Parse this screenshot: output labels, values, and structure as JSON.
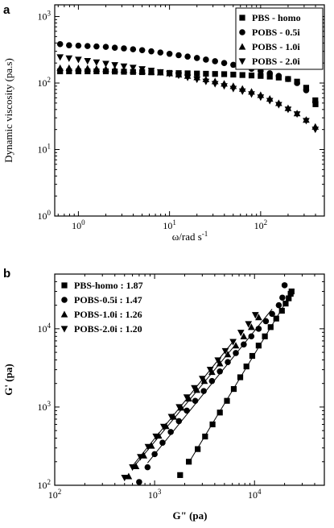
{
  "chart_data": [
    {
      "panel": "a",
      "type": "scatter",
      "x_scale": "log",
      "y_scale": "log",
      "xlim": [
        0.55,
        500
      ],
      "ylim": [
        1,
        1500
      ],
      "xlabel": "ω/rad s-1",
      "ylabel": "Dynamic viscosity (pa.s)",
      "xticks": [
        "10^0",
        "10^1",
        "10^2"
      ],
      "yticks": [
        "10^0",
        "10^1",
        "10^2",
        "10^3"
      ],
      "legend_position": "top-right",
      "series": [
        {
          "name": "PBS - homo",
          "marker": "square",
          "x": [
            0.63,
            0.79,
            1.0,
            1.26,
            1.58,
            2.0,
            2.51,
            3.16,
            3.98,
            5.01,
            6.31,
            7.94,
            10,
            12.6,
            15.8,
            20,
            25.1,
            31.6,
            39.8,
            50.1,
            63.1,
            79.4,
            100,
            126,
            158,
            200,
            251,
            316,
            398,
            400
          ],
          "y": [
            150,
            150,
            150,
            150,
            150,
            150,
            149,
            148,
            147,
            146,
            145,
            144,
            142,
            141,
            140,
            139,
            138,
            137,
            136,
            134,
            132,
            130,
            128,
            125,
            121,
            115,
            105,
            85,
            55,
            48
          ]
        },
        {
          "name": "POBS - 0.5i",
          "marker": "circle",
          "x": [
            0.63,
            0.79,
            1.0,
            1.26,
            1.58,
            2.0,
            2.51,
            3.16,
            3.98,
            5.01,
            6.31,
            7.94,
            10,
            12.6,
            15.8,
            20,
            25.1,
            31.6,
            39.8,
            50.1,
            63.1,
            79.4,
            100,
            126,
            158,
            200,
            251,
            316,
            398
          ],
          "y": [
            385,
            370,
            365,
            360,
            355,
            350,
            340,
            332,
            322,
            312,
            300,
            288,
            275,
            262,
            250,
            238,
            225,
            213,
            200,
            188,
            176,
            164,
            152,
            140,
            128,
            115,
            100,
            78,
            52
          ]
        },
        {
          "name": "POBS - 1.0i",
          "marker": "triangle-up",
          "x": [
            0.63,
            0.79,
            1.0,
            1.26,
            1.58,
            2.0,
            2.51,
            3.16,
            3.98,
            5.01,
            6.31,
            7.94,
            10,
            12.6,
            15.8,
            20,
            25.1,
            31.6,
            39.8,
            50.1,
            63.1,
            79.4,
            100,
            126,
            158,
            200,
            251,
            316,
            398
          ],
          "y": [
            168,
            168,
            167,
            166,
            164,
            162,
            160,
            158,
            155,
            152,
            148,
            144,
            140,
            134,
            128,
            122,
            114,
            106,
            98,
            90,
            82,
            74,
            66,
            58,
            50,
            42,
            35,
            28,
            22
          ]
        },
        {
          "name": "POBS - 2.0i",
          "marker": "triangle-down",
          "x": [
            0.63,
            0.79,
            1.0,
            1.26,
            1.58,
            2.0,
            2.51,
            3.16,
            3.98,
            5.01,
            6.31,
            7.94,
            10,
            12.6,
            15.8,
            20,
            25.1,
            31.6,
            39.8,
            50.1,
            63.1,
            79.4,
            100,
            126,
            158,
            200,
            251,
            316,
            398
          ],
          "y": [
            245,
            235,
            225,
            215,
            205,
            195,
            186,
            178,
            170,
            162,
            154,
            146,
            138,
            130,
            121,
            113,
            105,
            97,
            90,
            82,
            75,
            68,
            61,
            54,
            47,
            40,
            34,
            27,
            20
          ]
        }
      ]
    },
    {
      "panel": "b",
      "type": "scatter",
      "x_scale": "log",
      "y_scale": "log",
      "xlim": [
        100,
        50000
      ],
      "ylim": [
        100,
        50000
      ],
      "xlabel": "G\" (pa)",
      "ylabel": "G' (pa)",
      "xticks": [
        "10^2",
        "10^3",
        "10^4"
      ],
      "yticks": [
        "10^2",
        "10^3",
        "10^4"
      ],
      "legend_position": "top-left",
      "series": [
        {
          "name": "PBS-homo : 1.87",
          "marker": "square",
          "fit_line": true,
          "x": [
            1800,
            2200,
            2700,
            3200,
            3800,
            4500,
            5300,
            6200,
            7200,
            8300,
            9500,
            11000,
            12700,
            14500,
            16500,
            18800,
            20500,
            22000,
            23000,
            23500
          ],
          "y": [
            135,
            200,
            290,
            420,
            600,
            850,
            1200,
            1700,
            2400,
            3300,
            4500,
            6100,
            8000,
            10500,
            13500,
            17000,
            21000,
            24500,
            28000,
            30000
          ]
        },
        {
          "name": "POBS-0.5i : 1.47",
          "marker": "circle",
          "fit_line": true,
          "x": [
            700,
            850,
            1000,
            1200,
            1450,
            1750,
            2100,
            2550,
            3100,
            3750,
            4500,
            5400,
            6500,
            7800,
            9300,
            11000,
            13000,
            15000,
            17500,
            19000,
            20000
          ],
          "y": [
            110,
            170,
            250,
            350,
            480,
            660,
            900,
            1200,
            1600,
            2150,
            2850,
            3750,
            4900,
            6300,
            8000,
            10000,
            12500,
            15500,
            20000,
            25000,
            36000
          ]
        },
        {
          "name": "POBS-1.0i : 1.26",
          "marker": "triangle-up",
          "fit_line": true,
          "x": [
            550,
            650,
            780,
            930,
            1100,
            1300,
            1550,
            1850,
            2200,
            2650,
            3150,
            3750,
            4500,
            5400,
            6500,
            7800,
            9300,
            11000
          ],
          "y": [
            130,
            175,
            240,
            320,
            430,
            570,
            750,
            980,
            1280,
            1650,
            2150,
            2800,
            3600,
            4700,
            6100,
            8000,
            10500,
            14000
          ]
        },
        {
          "name": "POBS-2.0i : 1.20",
          "marker": "triangle-down",
          "fit_line": true,
          "x": [
            500,
            600,
            720,
            860,
            1030,
            1230,
            1470,
            1760,
            2100,
            2500,
            3000,
            3600,
            4300,
            5100,
            6100,
            7300,
            8700,
            10200
          ],
          "y": [
            125,
            170,
            230,
            310,
            420,
            560,
            750,
            1000,
            1330,
            1750,
            2300,
            3000,
            3950,
            5200,
            6800,
            8900,
            11500,
            15000
          ]
        }
      ]
    }
  ]
}
